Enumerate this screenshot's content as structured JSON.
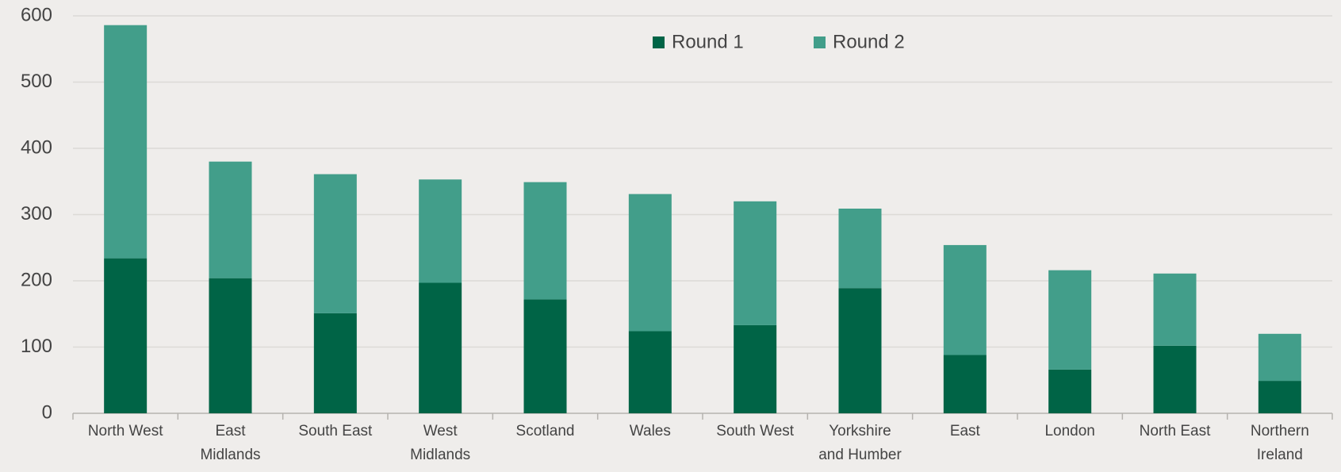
{
  "chart_data": {
    "type": "bar",
    "stacked": true,
    "categories": [
      "North West",
      "East Midlands",
      "South East",
      "West Midlands",
      "Scotland",
      "Wales",
      "South West",
      "Yorkshire and Humber",
      "East",
      "London",
      "North East",
      "Northern Ireland"
    ],
    "series": [
      {
        "name": "Round 1",
        "color": "#006446",
        "values": [
          234,
          204,
          151,
          197,
          172,
          124,
          133,
          189,
          88,
          66,
          102,
          49
        ]
      },
      {
        "name": "Round 2",
        "color": "#429e8a",
        "values": [
          352,
          176,
          210,
          156,
          177,
          207,
          187,
          120,
          166,
          150,
          109,
          71
        ]
      }
    ],
    "ylim": [
      0,
      600
    ],
    "yticks": [
      0,
      100,
      200,
      300,
      400,
      500,
      600
    ],
    "grid": true,
    "legend": "top"
  }
}
